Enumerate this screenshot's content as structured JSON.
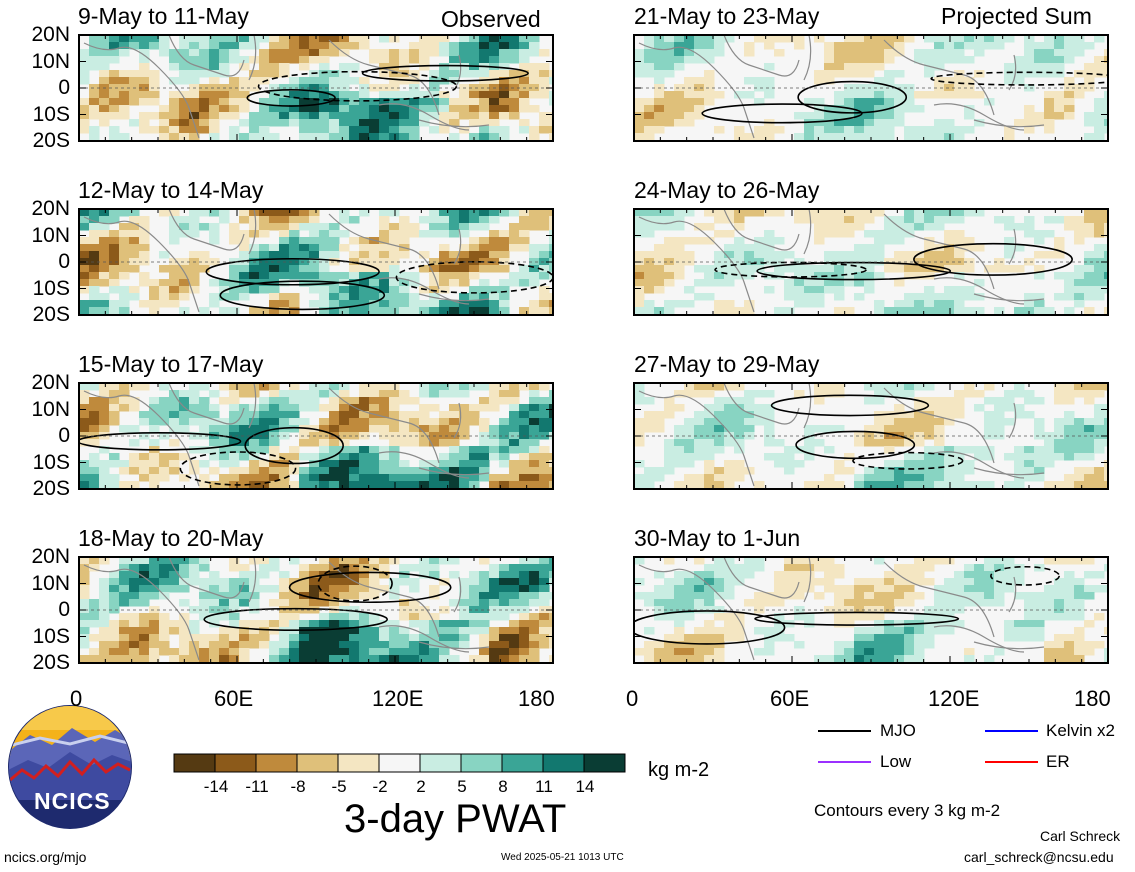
{
  "chart_data": {
    "type": "heatmap",
    "variable": "3-day PWAT",
    "units": "kg m-2",
    "colorbar": {
      "labels": [
        "-14",
        "-11",
        "-8",
        "-5",
        "-2",
        "2",
        "5",
        "8",
        "11",
        "14"
      ],
      "colors": [
        "#553a12",
        "#8c5a1a",
        "#bf8a3c",
        "#dfc07a",
        "#f4e6c2",
        "#f6f6f6",
        "#c9ede2",
        "#88d4c2",
        "#3aa596",
        "#12786f",
        "#0a3d34"
      ]
    },
    "x_ticks": [
      "0",
      "60E",
      "120E",
      "180"
    ],
    "y_ticks": [
      "20N",
      "10N",
      "0",
      "10S",
      "20S"
    ],
    "xlim": [
      0,
      180
    ],
    "ylim": [
      -20,
      20
    ],
    "left_column_label": "Observed",
    "right_column_label": "Projected Sum",
    "panels": [
      {
        "title": "9-May to 11-May",
        "column": "left",
        "row": 0,
        "kind": "observed"
      },
      {
        "title": "12-May to 14-May",
        "column": "left",
        "row": 1,
        "kind": "observed"
      },
      {
        "title": "15-May to 17-May",
        "column": "left",
        "row": 2,
        "kind": "observed"
      },
      {
        "title": "18-May to 20-May",
        "column": "left",
        "row": 3,
        "kind": "observed"
      },
      {
        "title": "21-May to 23-May",
        "column": "right",
        "row": 0,
        "kind": "projected"
      },
      {
        "title": "24-May to 26-May",
        "column": "right",
        "row": 1,
        "kind": "projected"
      },
      {
        "title": "27-May to 29-May",
        "column": "right",
        "row": 2,
        "kind": "projected"
      },
      {
        "title": "30-May to 1-Jun",
        "column": "right",
        "row": 3,
        "kind": "projected"
      }
    ]
  },
  "legend": {
    "items": [
      {
        "label": "MJO",
        "color": "#000000"
      },
      {
        "label": "Kelvin x2",
        "color": "#0000ff"
      },
      {
        "label": "Low",
        "color": "#9b30ff"
      },
      {
        "label": "ER",
        "color": "#ff0000"
      }
    ],
    "contour_note": "Contours every 3 kg m-2"
  },
  "footer": {
    "logo_text": "NCICS",
    "website": "ncics.org/mjo",
    "timestamp": "Wed 2025-05-21 1013 UTC",
    "author": "Carl Schreck",
    "email": "carl_schreck@ncsu.edu"
  }
}
